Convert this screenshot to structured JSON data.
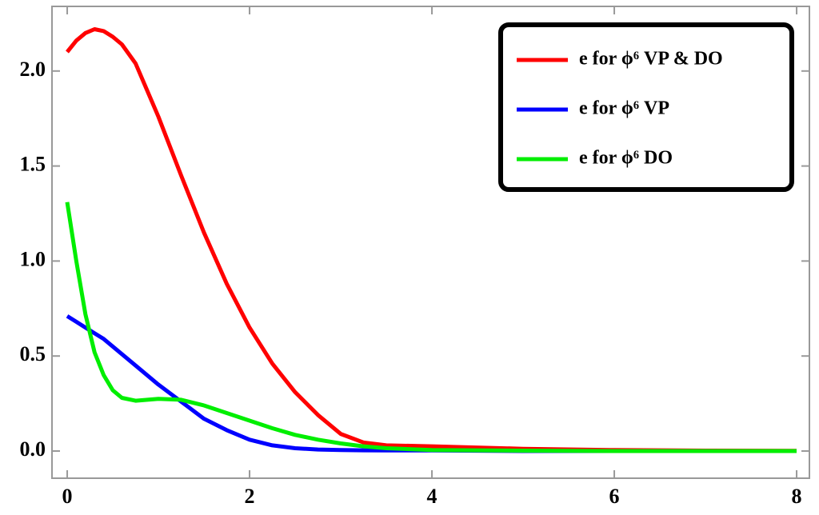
{
  "chart_data": {
    "type": "line",
    "x": [
      0,
      0.1,
      0.2,
      0.3,
      0.4,
      0.5,
      0.6,
      0.75,
      1,
      1.25,
      1.5,
      1.75,
      2,
      2.25,
      2.5,
      2.75,
      3,
      3.25,
      3.5,
      4,
      5,
      6,
      7,
      8
    ],
    "series": [
      {
        "name": "e for ϕ⁶ VP & DO",
        "color": "#ff0000",
        "values": [
          2.1,
          2.16,
          2.2,
          2.22,
          2.21,
          2.18,
          2.14,
          2.04,
          1.76,
          1.45,
          1.15,
          0.88,
          0.65,
          0.46,
          0.31,
          0.19,
          0.09,
          0.045,
          0.03,
          0.025,
          0.012,
          0.005,
          0.002,
          0.001
        ]
      },
      {
        "name": "e for ϕ⁶ VP",
        "color": "#0000ff",
        "values": [
          0.71,
          0.68,
          0.65,
          0.62,
          0.59,
          0.55,
          0.51,
          0.45,
          0.35,
          0.26,
          0.17,
          0.11,
          0.06,
          0.03,
          0.015,
          0.008,
          0.005,
          0.004,
          0.003,
          0.003,
          0,
          0,
          0,
          0
        ]
      },
      {
        "name": "e for ϕ⁶ DO",
        "color": "#00ee00",
        "values": [
          1.31,
          1.0,
          0.72,
          0.52,
          0.4,
          0.32,
          0.28,
          0.265,
          0.275,
          0.27,
          0.24,
          0.2,
          0.16,
          0.12,
          0.085,
          0.06,
          0.04,
          0.025,
          0.015,
          0.005,
          0.002,
          0,
          0,
          0
        ]
      }
    ],
    "xlim": [
      -0.167,
      8.14
    ],
    "ylim": [
      -0.143,
      2.34
    ],
    "xticks": [
      0,
      2,
      4,
      6,
      8
    ],
    "yticks": [
      {
        "value": 0,
        "label": "0.0"
      },
      0.5,
      {
        "value": 1,
        "label": "1.0"
      },
      1.5,
      {
        "value": 2,
        "label": "2.0"
      }
    ],
    "legend": "upper right"
  }
}
